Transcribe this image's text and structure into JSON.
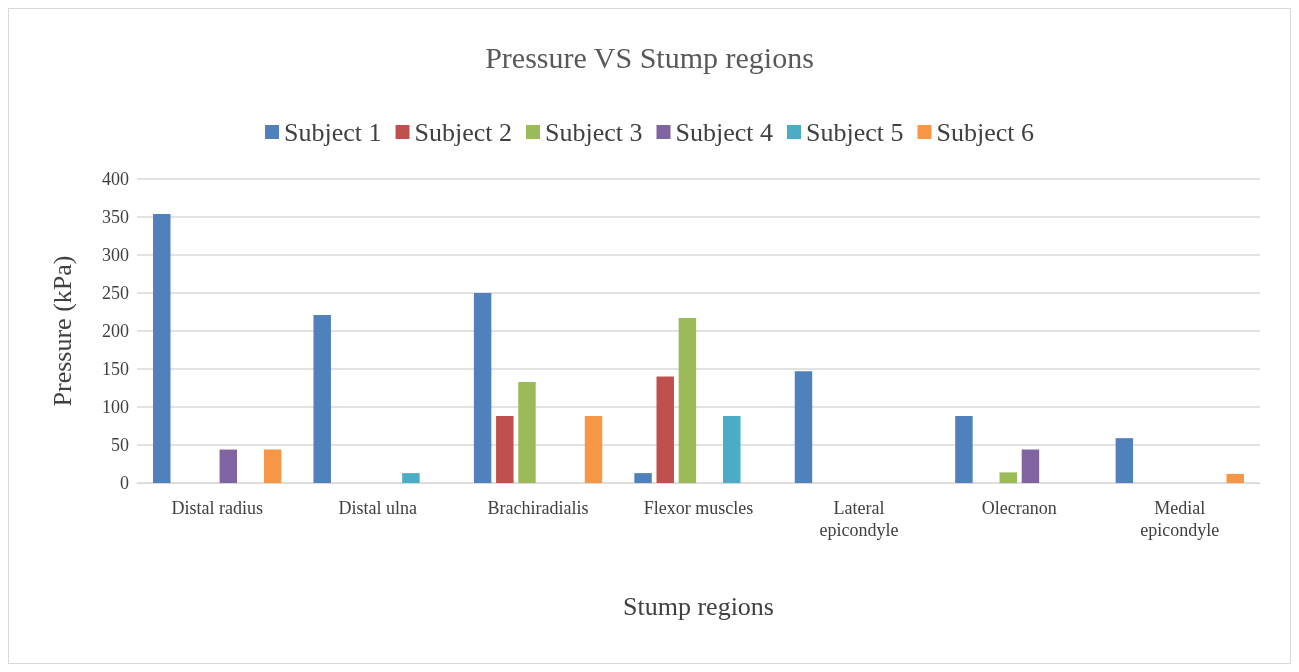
{
  "chart_data": {
    "type": "bar",
    "title": "Pressure VS Stump regions",
    "xlabel": "Stump regions",
    "ylabel": "Pressure (kPa)",
    "categories": [
      "Distal radius",
      "Distal ulna",
      "Brachiradialis",
      "Flexor muscles",
      "Lateral\nepicondyle",
      "Olecranon",
      "Medial\nepicondyle"
    ],
    "series": [
      {
        "name": "Subject 1",
        "color": "#4f81bd",
        "values": [
          354,
          221,
          250,
          13,
          147,
          88,
          59
        ]
      },
      {
        "name": "Subject 2",
        "color": "#c0504d",
        "values": [
          0,
          0,
          88,
          140,
          0,
          0,
          0
        ]
      },
      {
        "name": "Subject 3",
        "color": "#9bbb59",
        "values": [
          0,
          0,
          133,
          217,
          0,
          14,
          0
        ]
      },
      {
        "name": "Subject 4",
        "color": "#8064a2",
        "values": [
          44,
          0,
          0,
          0,
          0,
          44,
          0
        ]
      },
      {
        "name": "Subject 5",
        "color": "#4bacc6",
        "values": [
          0,
          13,
          0,
          88,
          0,
          0,
          0
        ]
      },
      {
        "name": "Subject 6",
        "color": "#f79646",
        "values": [
          44,
          0,
          88,
          0,
          0,
          0,
          12
        ]
      }
    ],
    "ylim": [
      0,
      400
    ],
    "yticks": [
      0,
      50,
      100,
      150,
      200,
      250,
      300,
      350,
      400
    ],
    "grid": "y",
    "legend": "top"
  }
}
